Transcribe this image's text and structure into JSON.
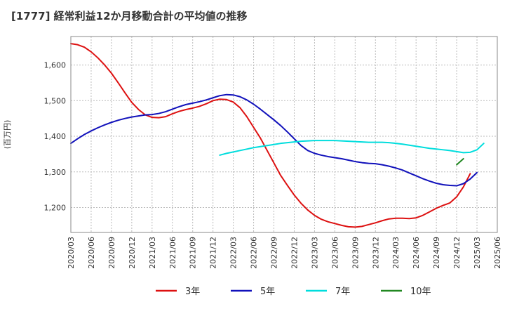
{
  "chart_data": {
    "type": "line",
    "title": "[1777]  経常利益12か月移動合計の平均値の推移",
    "ylabel": "(百万円)",
    "xlabel": "",
    "ylim": [
      1130,
      1680
    ],
    "yticks": [
      1200,
      1300,
      1400,
      1500,
      1600
    ],
    "ytick_labels": [
      "1,200",
      "1,300",
      "1,400",
      "1,500",
      "1,600"
    ],
    "xtick_labels": [
      "2020/03",
      "2020/06",
      "2020/09",
      "2020/12",
      "2021/03",
      "2021/06",
      "2021/09",
      "2021/12",
      "2022/03",
      "2022/06",
      "2022/09",
      "2022/12",
      "2023/03",
      "2023/06",
      "2023/09",
      "2023/12",
      "2024/03",
      "2024/06",
      "2024/09",
      "2024/12",
      "2025/03",
      "2025/06"
    ],
    "grid": true,
    "legend_position": "bottom",
    "series": [
      {
        "name": "3年",
        "color": "#dd1111",
        "start": "2020/03",
        "values": [
          1660,
          1657,
          1650,
          1637,
          1620,
          1600,
          1577,
          1550,
          1522,
          1495,
          1475,
          1460,
          1453,
          1452,
          1455,
          1463,
          1470,
          1475,
          1479,
          1484,
          1491,
          1500,
          1504,
          1503,
          1496,
          1480,
          1455,
          1425,
          1395,
          1360,
          1325,
          1290,
          1262,
          1235,
          1212,
          1193,
          1178,
          1167,
          1160,
          1155,
          1150,
          1146,
          1145,
          1147,
          1152,
          1157,
          1163,
          1168,
          1170,
          1170,
          1169,
          1171,
          1178,
          1188,
          1198,
          1206,
          1213,
          1230,
          1258,
          1295
        ]
      },
      {
        "name": "5年",
        "color": "#1111bb",
        "start": "2020/03",
        "values": [
          1380,
          1393,
          1405,
          1415,
          1424,
          1432,
          1439,
          1445,
          1450,
          1454,
          1457,
          1460,
          1461,
          1464,
          1469,
          1476,
          1483,
          1489,
          1493,
          1497,
          1502,
          1508,
          1514,
          1517,
          1516,
          1511,
          1502,
          1490,
          1476,
          1461,
          1446,
          1430,
          1412,
          1393,
          1374,
          1360,
          1352,
          1347,
          1343,
          1340,
          1337,
          1333,
          1329,
          1326,
          1324,
          1323,
          1320,
          1316,
          1311,
          1305,
          1297,
          1289,
          1281,
          1274,
          1268,
          1264,
          1262,
          1261,
          1267,
          1280,
          1298
        ]
      },
      {
        "name": "7年",
        "color": "#00dddd",
        "start": "2022/01",
        "values": [
          1347,
          1352,
          1356,
          1360,
          1364,
          1368,
          1371,
          1374,
          1377,
          1380,
          1382,
          1384,
          1386,
          1387,
          1388,
          1388,
          1388,
          1388,
          1387,
          1386,
          1385,
          1384,
          1383,
          1383,
          1383,
          1382,
          1380,
          1378,
          1375,
          1372,
          1369,
          1366,
          1364,
          1362,
          1360,
          1357,
          1354,
          1355,
          1362,
          1380
        ]
      },
      {
        "name": "10年",
        "color": "#228822",
        "start": "2024/12",
        "values": [
          1320,
          1337
        ]
      }
    ]
  }
}
